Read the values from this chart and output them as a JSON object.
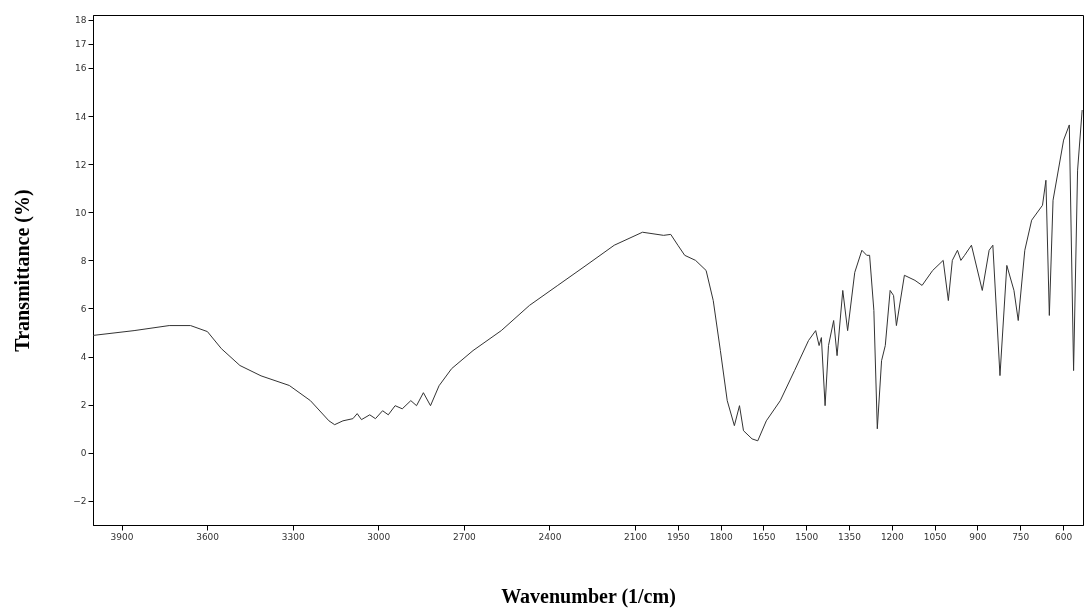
{
  "chart_data": {
    "type": "line",
    "xlabel": "Wavenumber (1/cm)",
    "ylabel": "Transmittance (%)",
    "x": [
      4000,
      3856,
      3733,
      3658,
      3599,
      3550,
      3485,
      3411,
      3312,
      3238,
      3173,
      3153,
      3124,
      3089,
      3074,
      3059,
      3030,
      3010,
      2985,
      2965,
      2941,
      2916,
      2886,
      2866,
      2842,
      2817,
      2787,
      2743,
      2668,
      2569,
      2470,
      2371,
      2272,
      2173,
      2074,
      2000,
      1975,
      1950,
      1926,
      1888,
      1851,
      1826,
      1801,
      1777,
      1752,
      1734,
      1720,
      1690,
      1670,
      1640,
      1591,
      1541,
      1492,
      1467,
      1455,
      1447,
      1434,
      1422,
      1404,
      1392,
      1372,
      1355,
      1330,
      1305,
      1288,
      1278,
      1263,
      1251,
      1236,
      1223,
      1206,
      1194,
      1184,
      1156,
      1119,
      1094,
      1057,
      1020,
      1002,
      988,
      970,
      958,
      945,
      921,
      883,
      859,
      846,
      821,
      797,
      772,
      757,
      734,
      710,
      672,
      660,
      648,
      635,
      598,
      578,
      563,
      549,
      533
    ],
    "series": [
      {
        "color": "#333333",
        "values": [
          4.88,
          5.08,
          5.29,
          5.29,
          5.04,
          4.33,
          3.63,
          3.2,
          2.8,
          2.17,
          1.33,
          1.17,
          1.33,
          1.42,
          1.63,
          1.38,
          1.58,
          1.42,
          1.75,
          1.58,
          1.96,
          1.83,
          2.17,
          1.96,
          2.5,
          1.96,
          2.79,
          3.5,
          4.25,
          5.08,
          6.13,
          6.96,
          7.79,
          8.63,
          9.17,
          9.04,
          9.08,
          8.63,
          8.21,
          8.0,
          7.58,
          6.33,
          4.25,
          2.17,
          1.13,
          1.96,
          0.92,
          0.58,
          0.5,
          1.33,
          2.17,
          3.42,
          4.67,
          5.08,
          4.46,
          4.79,
          1.96,
          4.46,
          5.5,
          4.04,
          6.75,
          5.08,
          7.5,
          8.42,
          8.21,
          8.21,
          5.92,
          1.0,
          3.83,
          4.46,
          6.75,
          6.54,
          5.29,
          7.38,
          7.17,
          6.96,
          7.58,
          8.0,
          6.33,
          8.0,
          8.42,
          8.0,
          8.21,
          8.63,
          6.75,
          8.42,
          8.63,
          3.21,
          7.79,
          6.75,
          5.5,
          8.42,
          9.67,
          10.29,
          11.33,
          5.71,
          10.5,
          13.0,
          13.63,
          3.42,
          11.75,
          14.25
        ]
      }
    ],
    "xlim": [
      4000,
      530
    ],
    "xticks": [
      3900,
      3600,
      3300,
      3000,
      2700,
      2400,
      2100,
      1950,
      1800,
      1650,
      1500,
      1350,
      1200,
      1050,
      900,
      750,
      600
    ],
    "ylim": [
      -3,
      18.2
    ],
    "yticks": [
      -2,
      0,
      2,
      4,
      6,
      8,
      10,
      12,
      14,
      16,
      17,
      18
    ],
    "grid": false,
    "marker": "none",
    "line_style": "solid"
  }
}
